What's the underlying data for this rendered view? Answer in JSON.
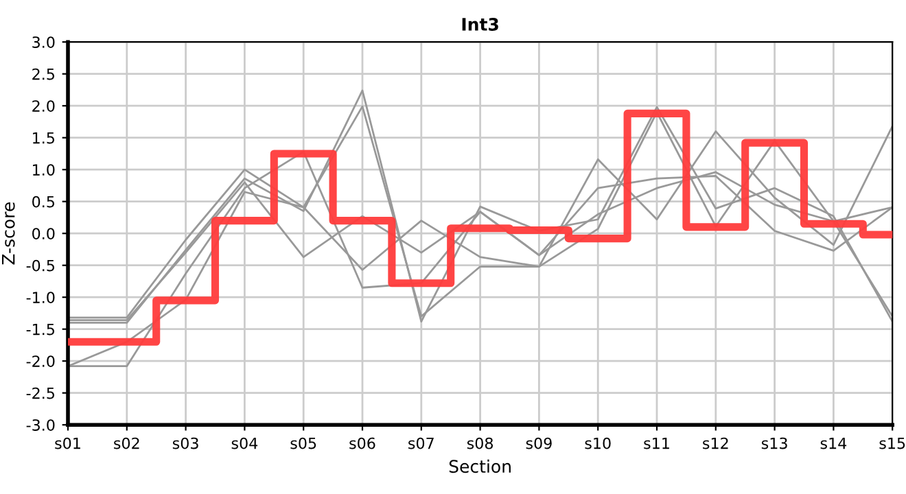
{
  "chart_data": {
    "type": "line",
    "title": "Int3",
    "xlabel": "Section",
    "ylabel": "Z-score",
    "categories": [
      "s01",
      "s02",
      "s03",
      "s04",
      "s05",
      "s06",
      "s07",
      "s08",
      "s09",
      "s10",
      "s11",
      "s12",
      "s13",
      "s14",
      "s15"
    ],
    "series": [
      {
        "color": "#999999",
        "values": [
          -1.32,
          -1.32,
          -0.1,
          1.0,
          0.41,
          -0.57,
          0.2,
          -0.37,
          -0.52,
          1.16,
          0.22,
          1.6,
          0.56,
          -0.18,
          1.68
        ]
      },
      {
        "color": "#999999",
        "values": [
          -1.4,
          -1.4,
          -0.26,
          0.86,
          0.35,
          2.24,
          -1.38,
          0.42,
          0.04,
          0.22,
          1.98,
          0.39,
          0.71,
          0.27,
          -1.38
        ]
      },
      {
        "color": "#999999",
        "values": [
          -2.08,
          -2.08,
          -0.63,
          0.71,
          1.28,
          -0.85,
          -0.78,
          0.34,
          -0.34,
          0.71,
          0.86,
          0.9,
          0.04,
          -0.27,
          0.41
        ]
      },
      {
        "color": "#999999",
        "values": [
          -2.08,
          -1.7,
          -1.04,
          0.65,
          0.41,
          1.99,
          -1.3,
          -0.52,
          -0.52,
          0.07,
          1.9,
          0.11,
          1.45,
          0.19,
          -1.3
        ]
      },
      {
        "color": "#999999",
        "values": [
          -1.36,
          -1.36,
          -0.3,
          0.8,
          -0.37,
          0.27,
          -0.3,
          0.34,
          -0.34,
          0.3,
          0.71,
          0.96,
          0.45,
          0.19,
          0.41
        ]
      },
      {
        "type": "step",
        "color": "#ff3b3b",
        "values": [
          -1.7,
          -1.7,
          -1.05,
          0.2,
          1.25,
          0.2,
          -0.78,
          0.08,
          0.05,
          -0.08,
          1.88,
          0.1,
          1.42,
          0.15,
          -0.02
        ]
      }
    ],
    "ylim": [
      -3.0,
      3.0
    ],
    "yticks": [
      {
        "value": -3.0,
        "label": "-3.0"
      },
      {
        "value": -2.5,
        "label": "-2.5"
      },
      {
        "value": -2.0,
        "label": "-2.0"
      },
      {
        "value": -1.5,
        "label": "-1.5"
      },
      {
        "value": -1.0,
        "label": "-1.0"
      },
      {
        "value": -0.5,
        "label": "-0.5"
      },
      {
        "value": 0.0,
        "label": "0.0"
      },
      {
        "value": 0.5,
        "label": "0.5"
      },
      {
        "value": 1.0,
        "label": "1.0"
      },
      {
        "value": 1.5,
        "label": "1.5"
      },
      {
        "value": 2.0,
        "label": "2.0"
      },
      {
        "value": 2.5,
        "label": "2.5"
      },
      {
        "value": 3.0,
        "label": "3.0"
      }
    ],
    "grid": true
  }
}
